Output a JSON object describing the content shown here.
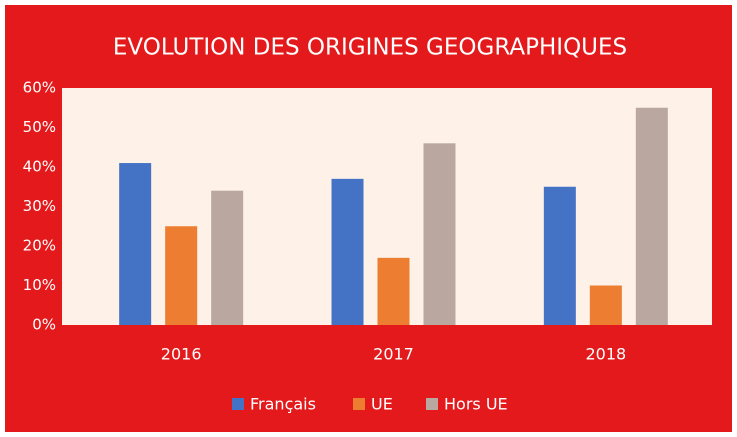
{
  "chart_data": {
    "type": "bar",
    "title": "EVOLUTION DES ORIGINES GEOGRAPHIQUES",
    "categories": [
      "2016",
      "2017",
      "2018"
    ],
    "series": [
      {
        "name": "Français",
        "color": "#4472c4",
        "values": [
          41,
          37,
          35
        ]
      },
      {
        "name": "UE",
        "color": "#ed7d31",
        "values": [
          25,
          17,
          10
        ]
      },
      {
        "name": "Hors UE",
        "color": "#baa8a0",
        "values": [
          34,
          46,
          55
        ]
      }
    ],
    "ylim": [
      0,
      60
    ],
    "yticks": [
      {
        "value": 0,
        "label": "0%"
      },
      {
        "value": 10,
        "label": "10%"
      },
      {
        "value": 20,
        "label": "20%"
      },
      {
        "value": 30,
        "label": "30%"
      },
      {
        "value": 40,
        "label": "40%"
      },
      {
        "value": 50,
        "label": "50%"
      },
      {
        "value": 60,
        "label": "60%"
      }
    ],
    "legend": "bottom"
  }
}
